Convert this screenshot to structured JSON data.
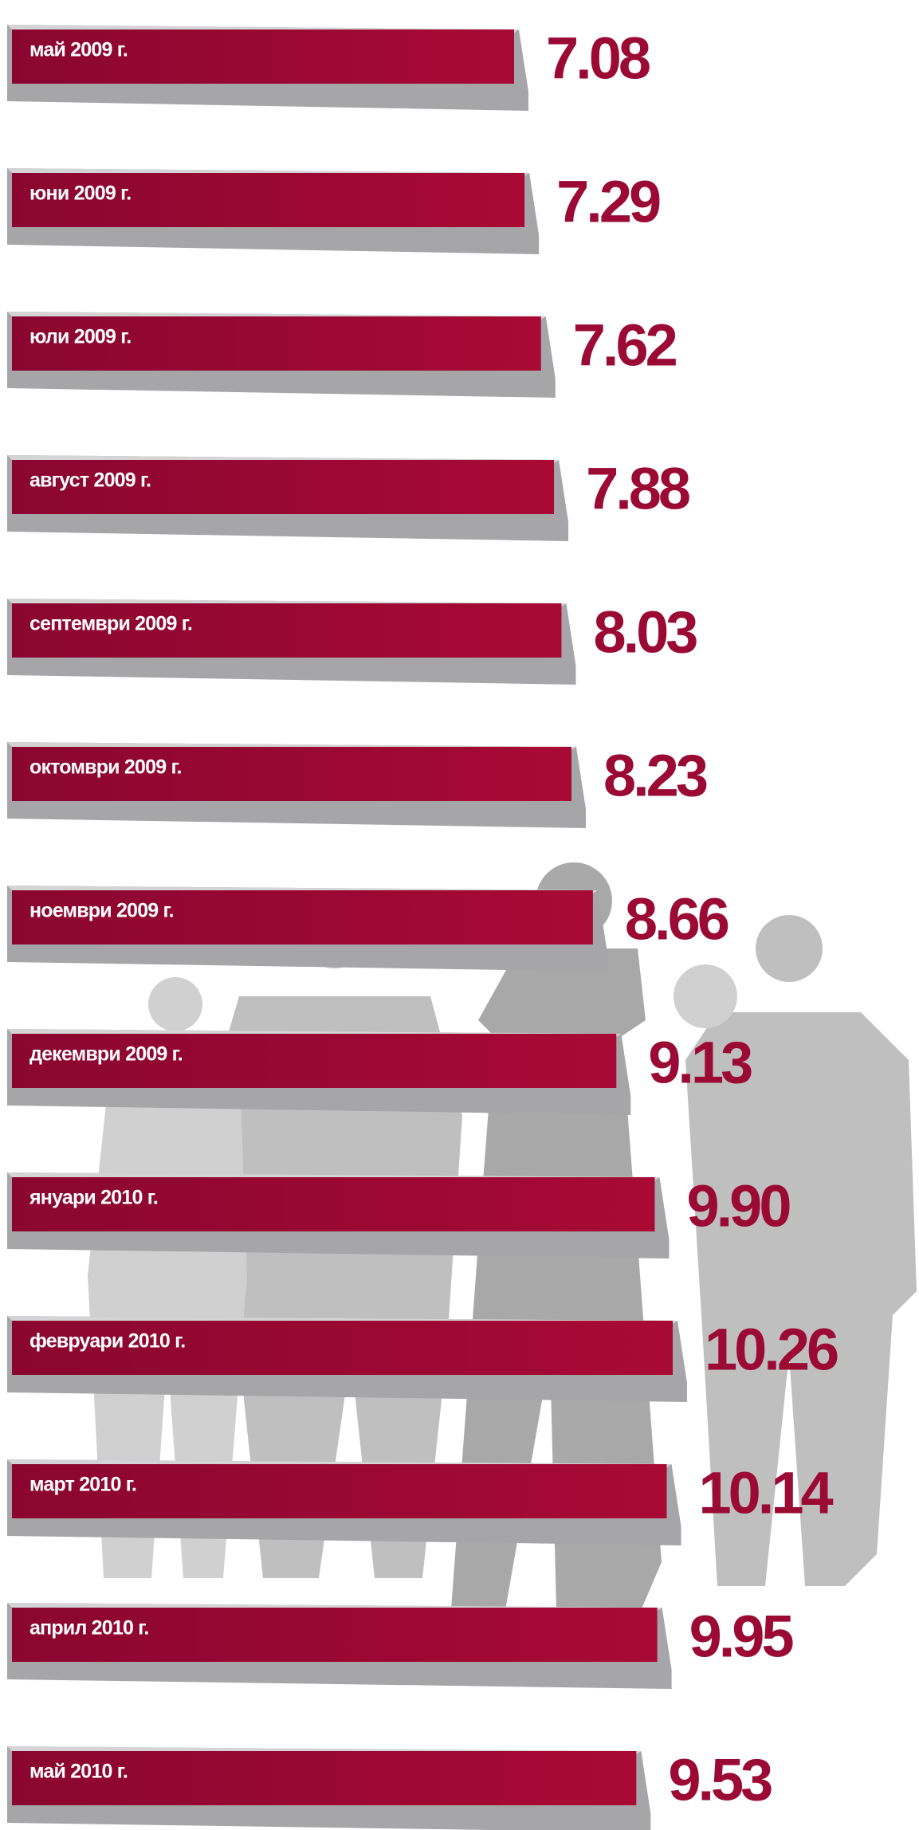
{
  "chart_data": {
    "type": "bar",
    "orientation": "horizontal",
    "color": "#9b0a35",
    "categories": [
      "май 2009 г.",
      "юни 2009 г.",
      "юли 2009 г.",
      "август 2009 г.",
      "септември 2009 г.",
      "октомври 2009 г.",
      "ноември 2009 г.",
      "декември 2009 г.",
      "януари 2010 г.",
      "февруари 2010 г.",
      "март 2010 г.",
      "април 2010 г.",
      "май 2010 г."
    ],
    "values": [
      7.08,
      7.29,
      7.62,
      7.88,
      8.03,
      8.23,
      8.66,
      9.13,
      9.9,
      10.26,
      10.14,
      9.95,
      9.53
    ],
    "value_labels": [
      "7.08",
      "7.29",
      "7.62",
      "7.88",
      "8.03",
      "8.23",
      "8.66",
      "9.13",
      "9.90",
      "10.26",
      "10.14",
      "9.95",
      "9.53"
    ]
  }
}
